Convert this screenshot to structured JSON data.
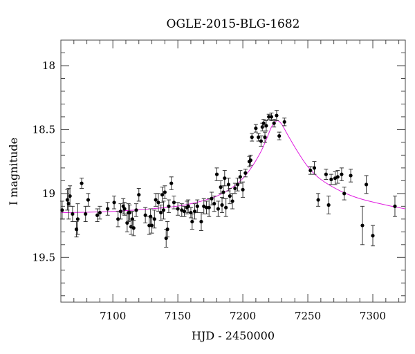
{
  "chart_data": {
    "type": "scatter",
    "title": "OGLE-2015-BLG-1682",
    "xlabel": "HJD - 2450000",
    "ylabel": "I magnitude",
    "xlim": [
      7060,
      7325
    ],
    "ylim": [
      19.85,
      17.8
    ],
    "y_inverted": true,
    "grid": false,
    "xticks": [
      7100,
      7150,
      7200,
      7250,
      7300
    ],
    "yticks": [
      18,
      18.5,
      19,
      19.5
    ],
    "series": [
      {
        "kind": "points",
        "x": [
          7061,
          7065,
          7066,
          7067,
          7069,
          7072,
          7073,
          7076,
          7079,
          7081,
          7088,
          7090,
          7096,
          7101,
          7104,
          7106,
          7108,
          7109,
          7111,
          7112,
          7113,
          7114,
          7115,
          7116,
          7118,
          7120,
          7125,
          7128,
          7129,
          7130,
          7132,
          7133,
          7135,
          7137,
          7138,
          7139,
          7140,
          7141,
          7142,
          7143,
          7145,
          7147,
          7150,
          7153,
          7155,
          7157,
          7158,
          7160,
          7161,
          7163,
          7165,
          7168,
          7170,
          7172,
          7174,
          7176,
          7178,
          7180,
          7181,
          7183,
          7184,
          7185,
          7186,
          7187,
          7189,
          7190,
          7192,
          7194,
          7196,
          7198,
          7200,
          7202,
          7205,
          7206,
          7207,
          7210,
          7212,
          7214,
          7215,
          7216,
          7217,
          7218,
          7220,
          7222,
          7224,
          7226,
          7228,
          7232,
          7252,
          7255,
          7258,
          7264,
          7266,
          7268,
          7271,
          7273,
          7276,
          7278,
          7283,
          7292,
          7295,
          7300,
          7317
        ],
        "y": [
          19.13,
          19.05,
          19.08,
          19.02,
          19.16,
          19.28,
          19.2,
          18.92,
          19.16,
          19.05,
          19.17,
          19.15,
          19.12,
          19.07,
          19.2,
          19.14,
          19.1,
          19.12,
          19.23,
          19.15,
          19.15,
          19.26,
          19.2,
          19.27,
          19.13,
          19.01,
          19.17,
          19.25,
          19.18,
          19.25,
          19.2,
          19.05,
          19.07,
          19.15,
          19.01,
          19.13,
          18.99,
          19.35,
          19.28,
          19.1,
          18.92,
          19.07,
          19.12,
          19.13,
          19.14,
          19.11,
          19.1,
          19.15,
          19.22,
          19.14,
          19.1,
          19.22,
          19.1,
          19.11,
          19.11,
          19.04,
          19.08,
          18.85,
          19.12,
          18.95,
          19.09,
          18.99,
          18.88,
          19.11,
          18.93,
          19.02,
          19.06,
          18.96,
          18.93,
          18.87,
          18.97,
          18.84,
          18.75,
          18.74,
          18.56,
          18.49,
          18.56,
          18.59,
          18.48,
          18.45,
          18.56,
          18.47,
          18.4,
          18.4,
          18.45,
          18.39,
          18.55,
          18.44,
          18.82,
          18.8,
          19.05,
          18.85,
          19.09,
          18.89,
          18.88,
          18.87,
          18.85,
          19.0,
          18.86,
          19.25,
          18.93,
          19.33,
          19.1
        ],
        "yerr": [
          0.07,
          0.08,
          0.12,
          0.08,
          0.06,
          0.06,
          0.12,
          0.04,
          0.06,
          0.05,
          0.05,
          0.05,
          0.05,
          0.05,
          0.06,
          0.06,
          0.06,
          0.05,
          0.07,
          0.07,
          0.06,
          0.06,
          0.06,
          0.06,
          0.05,
          0.05,
          0.06,
          0.07,
          0.06,
          0.06,
          0.07,
          0.05,
          0.07,
          0.06,
          0.06,
          0.07,
          0.05,
          0.07,
          0.06,
          0.05,
          0.05,
          0.05,
          0.05,
          0.05,
          0.04,
          0.05,
          0.05,
          0.04,
          0.06,
          0.06,
          0.05,
          0.07,
          0.06,
          0.05,
          0.07,
          0.05,
          0.06,
          0.05,
          0.06,
          0.05,
          0.06,
          0.05,
          0.06,
          0.07,
          0.05,
          0.06,
          0.06,
          0.04,
          0.05,
          0.05,
          0.06,
          0.03,
          0.04,
          0.04,
          0.03,
          0.03,
          0.03,
          0.04,
          0.03,
          0.03,
          0.04,
          0.04,
          0.02,
          0.03,
          0.03,
          0.04,
          0.03,
          0.03,
          0.03,
          0.05,
          0.05,
          0.04,
          0.07,
          0.04,
          0.05,
          0.05,
          0.05,
          0.05,
          0.05,
          0.15,
          0.07,
          0.08,
          0.08
        ]
      },
      {
        "kind": "model",
        "x": [
          7060,
          7100,
          7140,
          7160,
          7180,
          7195,
          7205,
          7213,
          7218,
          7222,
          7225,
          7227,
          7230,
          7235,
          7242,
          7250,
          7260,
          7275,
          7290,
          7310,
          7325
        ],
        "y": [
          19.15,
          19.14,
          19.11,
          19.08,
          19.02,
          18.93,
          18.82,
          18.69,
          18.58,
          18.48,
          18.44,
          18.43,
          18.46,
          18.55,
          18.67,
          18.79,
          18.89,
          18.98,
          19.04,
          19.09,
          19.12
        ]
      }
    ]
  }
}
